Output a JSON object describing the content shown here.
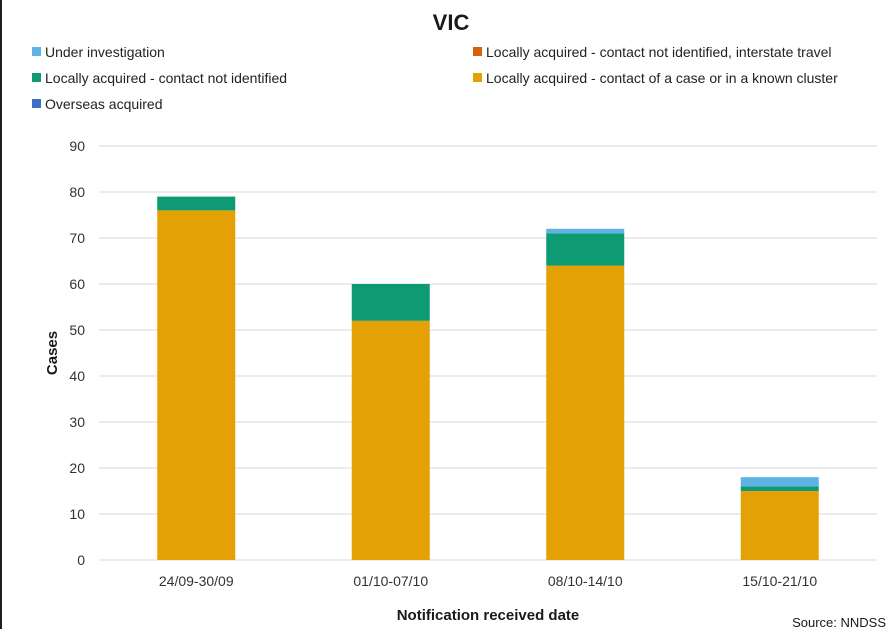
{
  "source_note": "Source: NNDSS",
  "chart_data": {
    "type": "bar",
    "stacked": true,
    "title": "VIC",
    "xlabel": "Notification received date",
    "ylabel": "Cases",
    "ylim": [
      0,
      90
    ],
    "yticks": [
      0,
      10,
      20,
      30,
      40,
      50,
      60,
      70,
      80,
      90
    ],
    "grid": true,
    "legend_position": "top",
    "categories": [
      "24/09-30/09",
      "01/10-07/10",
      "08/10-14/10",
      "15/10-21/10"
    ],
    "series": [
      {
        "name": "Locally acquired - contact of a case or in a known cluster",
        "color": "#E3A106",
        "values": [
          76,
          52,
          64,
          15
        ]
      },
      {
        "name": "Locally acquired - contact not identified",
        "color": "#0E9A73",
        "values": [
          3,
          8,
          7,
          1
        ]
      },
      {
        "name": "Locally acquired - contact not identified, interstate travel",
        "color": "#D7620E",
        "values": [
          0,
          0,
          0,
          0
        ]
      },
      {
        "name": "Overseas acquired",
        "color": "#3F6FC4",
        "values": [
          0,
          0,
          0,
          0
        ]
      },
      {
        "name": "Under investigation",
        "color": "#5CB3E4",
        "values": [
          0,
          0,
          1,
          2
        ]
      }
    ],
    "legend_order": [
      4,
      2,
      1,
      0,
      3
    ]
  }
}
